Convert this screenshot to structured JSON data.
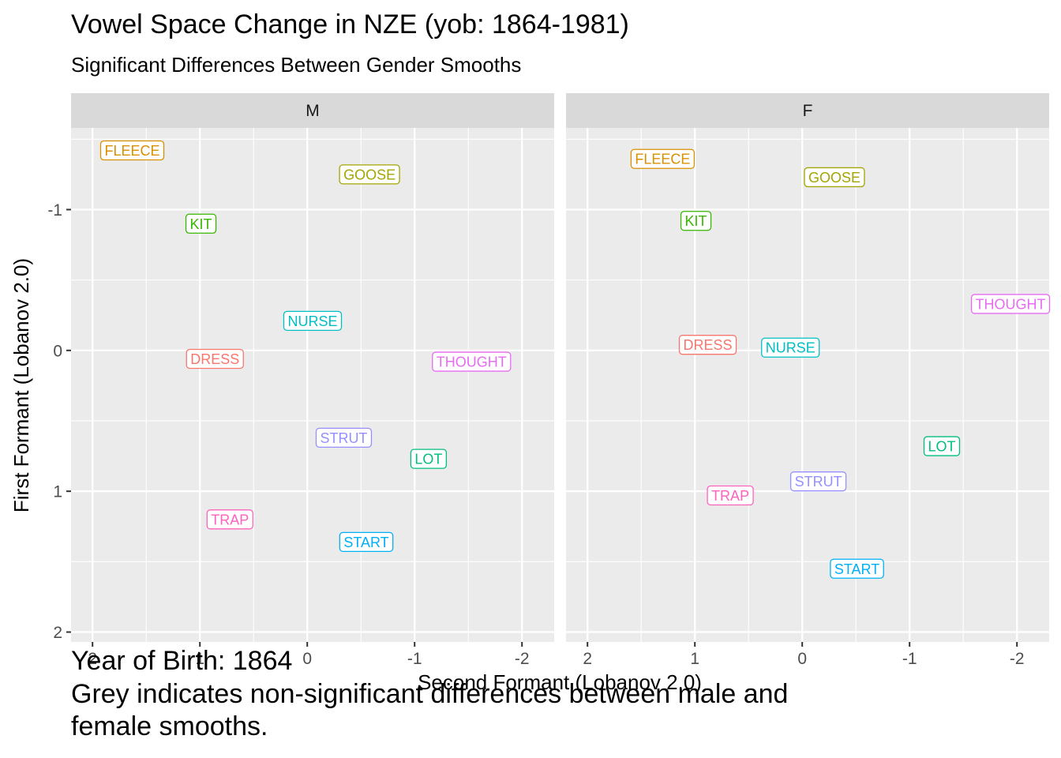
{
  "title": "Vowel Space Change in NZE (yob: 1864-1981)",
  "subtitle": "Significant Differences Between Gender Smooths",
  "caption_lines": [
    "Year of Birth: 1864",
    "Grey indicates non-significant differences between male and",
    "female smooths."
  ],
  "chart_data": {
    "type": "scatter",
    "label_style": "text-labels",
    "xlabel": "Second Formant (Lobanov 2.0)",
    "ylabel": "First Formant (Lobanov 2.0)",
    "x_reversed": true,
    "y_reversed": true,
    "xlim": [
      2.2,
      -2.3
    ],
    "ylim": [
      -1.58,
      2.07
    ],
    "x_ticks": [
      "2",
      "1",
      "0",
      "-1",
      "-2"
    ],
    "y_ticks": [
      "-1",
      "0",
      "1",
      "2"
    ],
    "grid": true,
    "colors": {
      "DRESS": "#F8766D",
      "FLEECE": "#D89000",
      "GOOSE": "#A3A500",
      "KIT": "#39B600",
      "LOT": "#00BF7D",
      "NURSE": "#00BFC4",
      "START": "#00B0F6",
      "STRUT": "#9590FF",
      "THOUGHT": "#E76BF3",
      "TRAP": "#FF62BC"
    },
    "panels": [
      {
        "name": "M",
        "points": [
          {
            "label": "FLEECE",
            "x": 1.63,
            "y": -1.42
          },
          {
            "label": "GOOSE",
            "x": -0.58,
            "y": -1.25
          },
          {
            "label": "KIT",
            "x": 0.99,
            "y": -0.9
          },
          {
            "label": "NURSE",
            "x": -0.05,
            "y": -0.21
          },
          {
            "label": "DRESS",
            "x": 0.86,
            "y": 0.06
          },
          {
            "label": "THOUGHT",
            "x": -1.53,
            "y": 0.08
          },
          {
            "label": "STRUT",
            "x": -0.34,
            "y": 0.62
          },
          {
            "label": "LOT",
            "x": -1.13,
            "y": 0.77
          },
          {
            "label": "TRAP",
            "x": 0.72,
            "y": 1.2
          },
          {
            "label": "START",
            "x": -0.55,
            "y": 1.36
          }
        ]
      },
      {
        "name": "F",
        "points": [
          {
            "label": "FLEECE",
            "x": 1.3,
            "y": -1.36
          },
          {
            "label": "GOOSE",
            "x": -0.3,
            "y": -1.23
          },
          {
            "label": "KIT",
            "x": 0.99,
            "y": -0.92
          },
          {
            "label": "THOUGHT",
            "x": -1.94,
            "y": -0.33
          },
          {
            "label": "DRESS",
            "x": 0.88,
            "y": -0.04
          },
          {
            "label": "NURSE",
            "x": 0.11,
            "y": -0.02
          },
          {
            "label": "LOT",
            "x": -1.3,
            "y": 0.68
          },
          {
            "label": "STRUT",
            "x": -0.15,
            "y": 0.93
          },
          {
            "label": "TRAP",
            "x": 0.67,
            "y": 1.03
          },
          {
            "label": "START",
            "x": -0.51,
            "y": 1.55
          }
        ]
      }
    ]
  }
}
